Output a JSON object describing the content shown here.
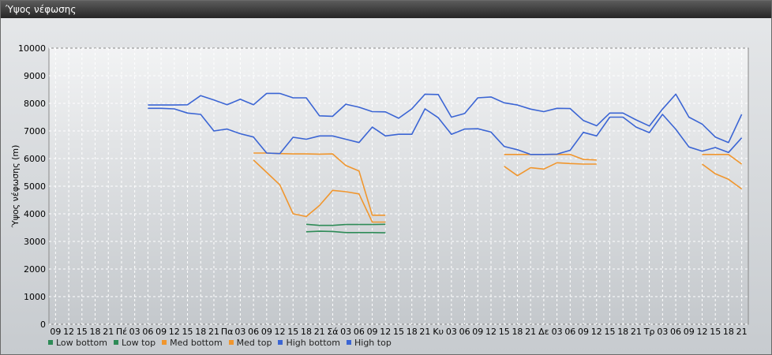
{
  "window": {
    "title": "Ύψος νέφωσης"
  },
  "colors": {
    "low": "#2e8b57",
    "med": "#f0962e",
    "high": "#3b65d4"
  },
  "legend": [
    {
      "label": "Low bottom",
      "color": "#2e8b57"
    },
    {
      "label": "Low top",
      "color": "#2e8b57"
    },
    {
      "label": "Med bottom",
      "color": "#f0962e"
    },
    {
      "label": "Med top",
      "color": "#f0962e"
    },
    {
      "label": "High bottom",
      "color": "#3b65d4"
    },
    {
      "label": "High top",
      "color": "#3b65d4"
    }
  ],
  "chart_data": {
    "type": "line",
    "title": "",
    "xlabel": "",
    "ylabel": "Ύψος νέφωσης (m)",
    "ylim": [
      0,
      10000
    ],
    "yticks": [
      0,
      1000,
      2000,
      3000,
      4000,
      5000,
      6000,
      7000,
      8000,
      9000,
      10000
    ],
    "grid": true,
    "legend_position": "bottom",
    "categories": [
      "09",
      "12",
      "15",
      "18",
      "21",
      "Πέ",
      "03",
      "06",
      "09",
      "12",
      "15",
      "18",
      "21",
      "Πα",
      "03",
      "06",
      "09",
      "12",
      "15",
      "18",
      "21",
      "Σά",
      "03",
      "06",
      "09",
      "12",
      "15",
      "18",
      "21",
      "Κυ",
      "03",
      "06",
      "09",
      "12",
      "15",
      "18",
      "21",
      "Δε",
      "03",
      "06",
      "09",
      "12",
      "15",
      "18",
      "21",
      "Τρ",
      "03",
      "06",
      "09",
      "12",
      "15",
      "18",
      "21"
    ],
    "series": [
      {
        "name": "Low bottom",
        "color": "#2e8b57",
        "values": [
          null,
          null,
          null,
          null,
          null,
          null,
          null,
          null,
          null,
          null,
          null,
          null,
          null,
          null,
          null,
          null,
          null,
          null,
          null,
          3350,
          3370,
          3360,
          3320,
          3320,
          3320,
          3310,
          null,
          null,
          null,
          null,
          null,
          null,
          null,
          null,
          null,
          null,
          null,
          null,
          null,
          null,
          null,
          null,
          null,
          null,
          null,
          null,
          null,
          null,
          null,
          null,
          null,
          null,
          null
        ]
      },
      {
        "name": "Low top",
        "color": "#2e8b57",
        "values": [
          null,
          null,
          null,
          null,
          null,
          null,
          null,
          null,
          null,
          null,
          null,
          null,
          null,
          null,
          null,
          null,
          null,
          null,
          null,
          3620,
          3580,
          3580,
          3610,
          3610,
          3610,
          3620,
          null,
          null,
          null,
          null,
          null,
          null,
          null,
          null,
          null,
          null,
          null,
          null,
          null,
          null,
          null,
          null,
          null,
          null,
          null,
          null,
          null,
          null,
          null,
          null,
          null,
          null,
          null
        ]
      },
      {
        "name": "Med bottom",
        "color": "#f0962e",
        "values": [
          null,
          null,
          null,
          null,
          null,
          null,
          null,
          null,
          null,
          null,
          null,
          null,
          null,
          null,
          null,
          5950,
          5500,
          5050,
          4000,
          3900,
          4300,
          4850,
          4800,
          4720,
          3700,
          3700,
          null,
          null,
          null,
          null,
          null,
          null,
          null,
          null,
          5720,
          5380,
          5670,
          5620,
          5850,
          5820,
          5800,
          5800,
          null,
          null,
          null,
          null,
          null,
          null,
          null,
          5800,
          5450,
          5250,
          4900
        ]
      },
      {
        "name": "Med top",
        "color": "#f0962e",
        "values": [
          null,
          null,
          null,
          null,
          null,
          null,
          null,
          null,
          null,
          null,
          null,
          null,
          null,
          null,
          null,
          6200,
          6200,
          6180,
          6170,
          6170,
          6160,
          6170,
          5750,
          5550,
          3950,
          3950,
          null,
          null,
          null,
          null,
          null,
          null,
          null,
          null,
          6150,
          6150,
          6150,
          6150,
          6150,
          6150,
          5970,
          5950,
          null,
          null,
          null,
          null,
          null,
          null,
          null,
          6150,
          6150,
          6150,
          5800
        ]
      },
      {
        "name": "High bottom",
        "color": "#3b65d4",
        "values": [
          null,
          null,
          null,
          null,
          null,
          null,
          null,
          7820,
          7820,
          7800,
          7650,
          7600,
          7000,
          7070,
          6900,
          6780,
          6200,
          6180,
          6770,
          6700,
          6820,
          6820,
          6700,
          6580,
          7140,
          6820,
          6880,
          6880,
          7800,
          7480,
          6880,
          7070,
          7080,
          6960,
          6440,
          6320,
          6150,
          6150,
          6160,
          6300,
          6950,
          6820,
          7500,
          7500,
          7140,
          6940,
          7600,
          7060,
          6420,
          6270,
          6400,
          6220,
          6750
        ]
      },
      {
        "name": "High top",
        "color": "#3b65d4",
        "values": [
          null,
          null,
          null,
          null,
          null,
          null,
          null,
          7940,
          7940,
          7940,
          7950,
          8280,
          8120,
          7950,
          8150,
          7950,
          8360,
          8360,
          8200,
          8200,
          7550,
          7530,
          7970,
          7860,
          7700,
          7690,
          7460,
          7800,
          8330,
          8320,
          7500,
          7630,
          8200,
          8230,
          8020,
          7940,
          7790,
          7700,
          7820,
          7810,
          7380,
          7190,
          7650,
          7650,
          7400,
          7180,
          7790,
          8330,
          7500,
          7250,
          6780,
          6580,
          7600
        ]
      }
    ]
  }
}
